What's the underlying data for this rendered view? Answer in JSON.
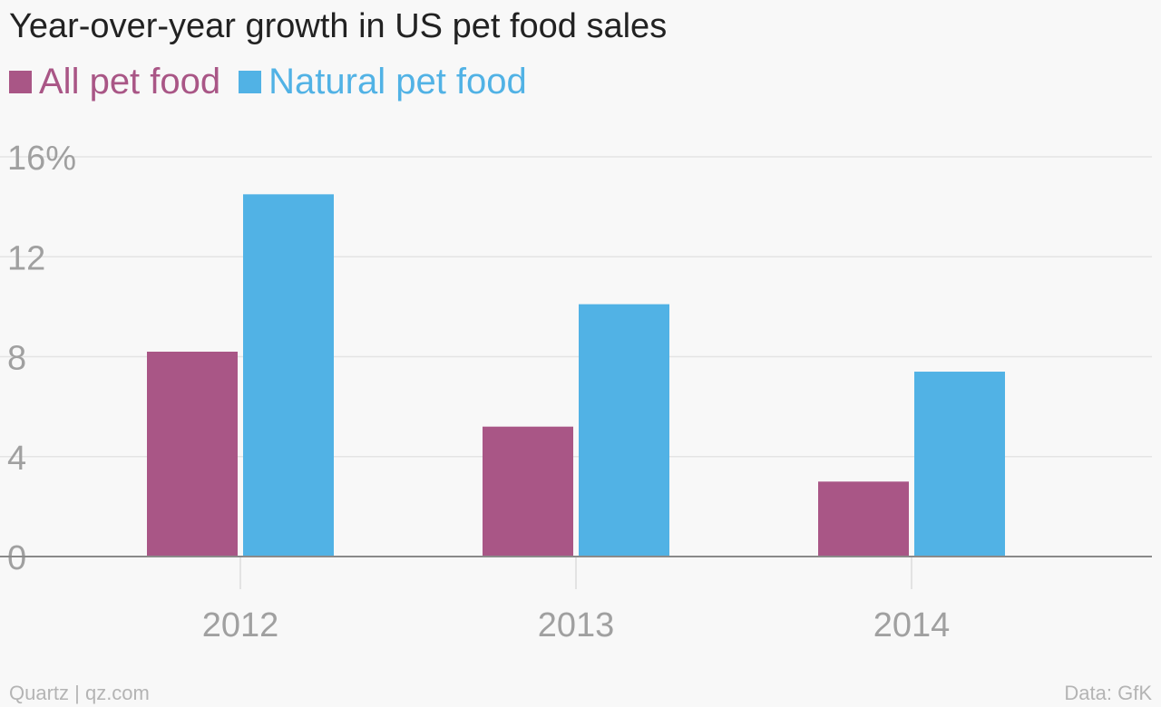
{
  "chart_data": {
    "type": "bar",
    "title": "Year-over-year growth in US pet food sales",
    "categories": [
      "2012",
      "2013",
      "2014"
    ],
    "series": [
      {
        "name": "All pet food",
        "color": "#a95686",
        "values": [
          8.2,
          5.2,
          3.0
        ]
      },
      {
        "name": "Natural pet food",
        "color": "#51b2e5",
        "values": [
          14.5,
          10.1,
          7.4
        ]
      }
    ],
    "ylim": [
      0,
      16
    ],
    "yticks": [
      0,
      4,
      8,
      12,
      16
    ],
    "ytick_labels": [
      "0",
      "4",
      "8",
      "12",
      "16%"
    ],
    "xlabel": "",
    "ylabel": "",
    "grid": true,
    "legend_position": "top-left"
  },
  "footer": {
    "source_left": "Quartz | qz.com",
    "source_right": "Data: GfK"
  }
}
